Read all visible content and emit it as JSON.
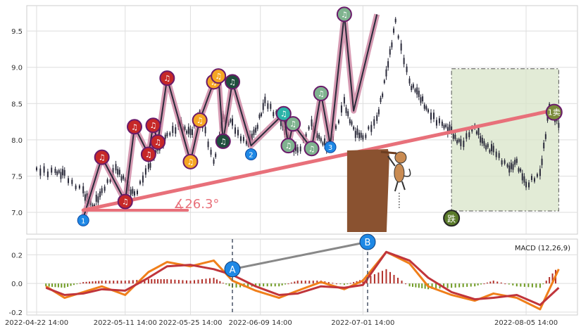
{
  "chart_data": [
    {
      "type": "line",
      "title": "",
      "xlabel": "",
      "ylabel": "",
      "ylim": [
        6.7,
        9.85
      ],
      "yticks": [
        7.0,
        7.5,
        8.0,
        8.5,
        9.0,
        9.5
      ],
      "ytick_labels": [
        "7.0",
        "7.5",
        "8.0",
        "8.5",
        "9.0",
        "9.5"
      ],
      "grid": true,
      "series": [
        {
          "color": "#2a2a3a",
          "x": [
            "2022-04-22",
            "2022-04-26",
            "2022-04-28",
            "2022-05-02",
            "2022-05-04",
            "2022-05-06",
            "2022-05-09",
            "2022-05-11",
            "2022-05-13",
            "2022-05-16",
            "2022-05-18",
            "2022-05-20",
            "2022-05-23",
            "2022-05-25",
            "2022-05-27",
            "2022-05-30",
            "2022-06-01",
            "2022-06-03",
            "2022-06-06",
            "2022-06-08",
            "2022-06-10",
            "2022-06-13",
            "2022-06-15",
            "2022-06-17",
            "2022-06-20",
            "2022-06-22",
            "2022-06-24",
            "2022-06-27",
            "2022-06-29",
            "2022-07-01",
            "2022-07-04",
            "2022-07-06",
            "2022-07-08",
            "2022-07-11",
            "2022-07-13",
            "2022-07-15",
            "2022-07-18",
            "2022-07-20",
            "2022-07-22",
            "2022-07-25",
            "2022-07-27",
            "2022-07-29",
            "2022-08-01",
            "2022-08-03",
            "2022-08-05",
            "2022-08-08",
            "2022-08-10",
            "2022-08-12"
          ],
          "y": [
            7.6,
            7.55,
            7.5,
            7.3,
            7.05,
            7.3,
            7.6,
            7.4,
            7.25,
            7.6,
            7.9,
            8.05,
            8.2,
            8.1,
            8.35,
            7.7,
            8.3,
            8.2,
            7.95,
            8.1,
            8.55,
            8.3,
            8.0,
            7.85,
            8.2,
            8.0,
            7.9,
            8.5,
            8.15,
            8.0,
            8.3,
            8.9,
            9.6,
            8.8,
            8.6,
            8.4,
            8.2,
            8.1,
            7.95,
            8.15,
            7.95,
            7.85,
            7.6,
            7.7,
            7.35,
            7.55,
            8.45,
            8.2
          ]
        }
      ],
      "swing_points": {
        "x": [
          "2022-05-02",
          "2022-05-06",
          "2022-05-11",
          "2022-05-13",
          "2022-05-16",
          "2022-05-17",
          "2022-05-18",
          "2022-05-20",
          "2022-05-25",
          "2022-05-27",
          "2022-05-30",
          "2022-05-31",
          "2022-06-01",
          "2022-06-03",
          "2022-06-07",
          "2022-06-14",
          "2022-06-15",
          "2022-06-16",
          "2022-06-20",
          "2022-06-22",
          "2022-06-24",
          "2022-06-27",
          "2022-06-29",
          "2022-07-04"
        ],
        "y": [
          6.92,
          7.76,
          7.15,
          8.18,
          7.8,
          8.2,
          7.97,
          8.85,
          7.7,
          8.27,
          8.8,
          8.88,
          7.98,
          8.8,
          7.92,
          8.36,
          7.92,
          8.22,
          7.88,
          8.64,
          7.93,
          9.73,
          8.4,
          9.73
        ]
      },
      "markers": [
        {
          "kind": "note",
          "color": "#c62828",
          "x": "2022-05-06",
          "y": 7.76
        },
        {
          "kind": "note",
          "color": "#c62828",
          "x": "2022-05-11",
          "y": 7.15
        },
        {
          "kind": "note",
          "color": "#c62828",
          "x": "2022-05-13",
          "y": 8.18
        },
        {
          "kind": "note",
          "color": "#c62828",
          "x": "2022-05-16",
          "y": 7.8
        },
        {
          "kind": "note",
          "color": "#c62828",
          "x": "2022-05-17",
          "y": 8.2
        },
        {
          "kind": "note",
          "color": "#c62828",
          "x": "2022-05-18",
          "y": 7.97
        },
        {
          "kind": "note",
          "color": "#c62828",
          "x": "2022-05-20",
          "y": 8.85
        },
        {
          "kind": "note",
          "color": "#f5a623",
          "x": "2022-05-25",
          "y": 7.7
        },
        {
          "kind": "note",
          "color": "#f5a623",
          "x": "2022-05-27",
          "y": 8.27
        },
        {
          "kind": "note",
          "color": "#f5a623",
          "x": "2022-05-30",
          "y": 8.8
        },
        {
          "kind": "note",
          "color": "#f5a623",
          "x": "2022-05-31",
          "y": 8.88
        },
        {
          "kind": "note",
          "color": "#1f4e3d",
          "x": "2022-06-01",
          "y": 7.98
        },
        {
          "kind": "note",
          "color": "#1f4e3d",
          "x": "2022-06-03",
          "y": 8.8
        },
        {
          "kind": "note",
          "color": "#2bb3a8",
          "x": "2022-06-14",
          "y": 8.36
        },
        {
          "kind": "note",
          "color": "#7fb38f",
          "x": "2022-06-15",
          "y": 7.92
        },
        {
          "kind": "note",
          "color": "#7fb38f",
          "x": "2022-06-16",
          "y": 8.22
        },
        {
          "kind": "note",
          "color": "#7fb38f",
          "x": "2022-06-20",
          "y": 7.88
        },
        {
          "kind": "note",
          "color": "#7fb38f",
          "x": "2022-06-22",
          "y": 8.64
        },
        {
          "kind": "note",
          "color": "#7fb38f",
          "x": "2022-06-27",
          "y": 9.73
        },
        {
          "kind": "num",
          "color": "#1e88e5",
          "label": "1",
          "x": "2022-05-02",
          "y": 6.89
        },
        {
          "kind": "num",
          "color": "#1e88e5",
          "label": "2",
          "x": "2022-06-07",
          "y": 7.8
        },
        {
          "kind": "num",
          "color": "#1e88e5",
          "label": "3",
          "x": "2022-06-24",
          "y": 7.9
        },
        {
          "kind": "sell",
          "color": "#7a8a3a",
          "label": "1卖",
          "x": "2022-08-11",
          "y": 8.38
        },
        {
          "kind": "fall",
          "color": "#5a7a2a",
          "label": "跌",
          "x": "2022-07-20",
          "y": 6.92
        }
      ],
      "trend_line": {
        "x": [
          "2022-05-02",
          "2022-08-11"
        ],
        "y": [
          7.03,
          8.41
        ],
        "color": "#e8707a"
      },
      "angle_label": "∡26.3°",
      "box": {
        "x": [
          "2022-07-20",
          "2022-08-12"
        ],
        "y": [
          7.02,
          8.98
        ],
        "color": "#d8e4c8"
      },
      "x_ticks": [
        "2022-04-22",
        "2022-05-11",
        "2022-05-25",
        "2022-06-09",
        "2022-07-01",
        "2022-08-05"
      ],
      "x_tick_labels": [
        "2022-04-22 14:00",
        "2022-05-11 14:00",
        "2022-05-25 14:00",
        "2022-06-09 14:00",
        "2022-07-01 14:00",
        "2022-08-05 14:00"
      ]
    },
    {
      "type": "line",
      "title": "",
      "xlabel": "",
      "ylabel": "",
      "ylim": [
        -0.22,
        0.31
      ],
      "yticks": [
        -0.2,
        0.0,
        0.2
      ],
      "ytick_labels": [
        "-0.2",
        "0.0",
        "0.2"
      ],
      "legend": "MACD (12,26,9)",
      "legend_position": "top-right",
      "grid": true,
      "series": [
        {
          "color": "#f07f1a",
          "x": [
            "2022-04-24",
            "2022-04-28",
            "2022-05-02",
            "2022-05-06",
            "2022-05-11",
            "2022-05-16",
            "2022-05-20",
            "2022-05-25",
            "2022-05-30",
            "2022-06-03",
            "2022-06-08",
            "2022-06-13",
            "2022-06-17",
            "2022-06-22",
            "2022-06-27",
            "2022-07-01",
            "2022-07-06",
            "2022-07-11",
            "2022-07-15",
            "2022-07-20",
            "2022-07-25",
            "2022-07-29",
            "2022-08-03",
            "2022-08-08",
            "2022-08-12"
          ],
          "y": [
            -0.02,
            -0.1,
            -0.06,
            -0.02,
            -0.08,
            0.08,
            0.15,
            0.12,
            0.16,
            0.02,
            -0.05,
            -0.1,
            -0.05,
            0.01,
            -0.04,
            0.02,
            0.22,
            0.14,
            -0.02,
            -0.08,
            -0.12,
            -0.07,
            -0.1,
            -0.18,
            0.1
          ]
        },
        {
          "color": "#c0353b",
          "x": [
            "2022-04-24",
            "2022-04-28",
            "2022-05-02",
            "2022-05-06",
            "2022-05-11",
            "2022-05-16",
            "2022-05-20",
            "2022-05-25",
            "2022-05-30",
            "2022-06-03",
            "2022-06-08",
            "2022-06-13",
            "2022-06-17",
            "2022-06-22",
            "2022-06-27",
            "2022-07-01",
            "2022-07-06",
            "2022-07-11",
            "2022-07-15",
            "2022-07-20",
            "2022-07-25",
            "2022-07-29",
            "2022-08-03",
            "2022-08-08",
            "2022-08-12"
          ],
          "y": [
            -0.03,
            -0.08,
            -0.07,
            -0.04,
            -0.05,
            0.04,
            0.12,
            0.13,
            0.1,
            0.06,
            -0.02,
            -0.08,
            -0.07,
            -0.02,
            -0.03,
            -0.01,
            0.22,
            0.16,
            0.04,
            -0.06,
            -0.11,
            -0.1,
            -0.08,
            -0.15,
            -0.03
          ]
        }
      ],
      "histogram": {
        "x": [
          "2022-04-24",
          "2022-04-28",
          "2022-05-02",
          "2022-05-06",
          "2022-05-11",
          "2022-05-16",
          "2022-05-20",
          "2022-05-25",
          "2022-05-30",
          "2022-06-03",
          "2022-06-08",
          "2022-06-13",
          "2022-06-17",
          "2022-06-22",
          "2022-06-27",
          "2022-07-01",
          "2022-07-06",
          "2022-07-11",
          "2022-07-15",
          "2022-07-20",
          "2022-07-25",
          "2022-07-29",
          "2022-08-03",
          "2022-08-08",
          "2022-08-12"
        ],
        "y": [
          -0.02,
          -0.03,
          0.01,
          0.02,
          0.02,
          0.03,
          0.03,
          0.02,
          0.04,
          -0.03,
          -0.02,
          -0.02,
          0.02,
          0.02,
          -0.01,
          0.03,
          0.1,
          -0.02,
          -0.04,
          -0.03,
          -0.02,
          0.02,
          -0.02,
          -0.03,
          0.12
        ],
        "pos_color": "#b2302a",
        "neg_color": "#6e9a22"
      },
      "annotations": [
        {
          "label": "A",
          "x": "2022-06-03",
          "y": 0.1,
          "color": "#1e88e5"
        },
        {
          "label": "B",
          "x": "2022-07-02",
          "y": 0.29,
          "color": "#1e88e5"
        }
      ],
      "vlines": [
        "2022-06-03",
        "2022-07-02"
      ],
      "x_ticks": [
        "2022-04-22",
        "2022-05-11",
        "2022-05-25",
        "2022-06-09",
        "2022-07-01",
        "2022-08-05"
      ],
      "x_tick_labels": [
        "2022-04-22 14:00",
        "2022-05-11 14:00",
        "2022-05-25 14:00",
        "2022-06-09 14:00",
        "2022-07-01 14:00",
        "2022-08-05 14:00"
      ]
    }
  ],
  "colors": {
    "grid": "#dedede",
    "frame": "#cccccc",
    "swing_fill": "#c87a9a",
    "swing_line": "#2a2a3a"
  }
}
